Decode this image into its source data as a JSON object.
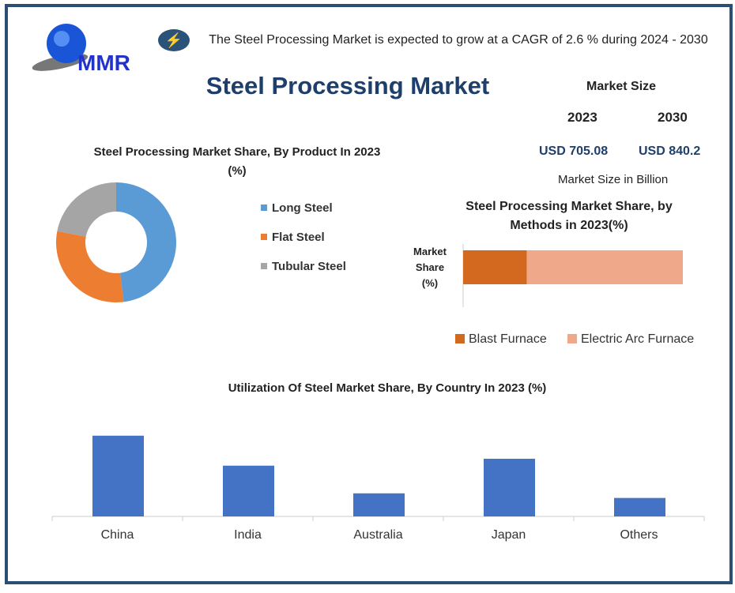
{
  "header": {
    "logo_text": "MMR",
    "cagr_text": "The Steel Processing Market is expected to grow at a CAGR of 2.6 % during 2024 - 2030",
    "title": "Steel Processing Market"
  },
  "market_size": {
    "label": "Market Size",
    "year1": "2023",
    "year2": "2030",
    "value1": "USD 705.08",
    "value2": "USD 840.2",
    "unit": "Market Size in Billion"
  },
  "colors": {
    "blue": "#5b9bd5",
    "orange": "#ed7d31",
    "gray": "#a5a5a5",
    "bf": "#d2691e",
    "eaf": "#f0a88a",
    "bar": "#4472c4",
    "navy": "#1e3f6b"
  },
  "chart_data": [
    {
      "type": "pie",
      "title": "Steel Processing Market Share, By Product In 2023  (%)",
      "categories": [
        "Long Steel",
        "Flat Steel",
        "Tubular Steel"
      ],
      "values": [
        48,
        30,
        22
      ],
      "colors": [
        "#5b9bd5",
        "#ed7d31",
        "#a5a5a5"
      ]
    },
    {
      "type": "bar",
      "orientation": "horizontal-stacked",
      "title": "Steel Processing Market Share, by Methods in 2023(%)",
      "ylabel": "Market Share (%)",
      "series": [
        {
          "name": "Blast Furnace",
          "values": [
            29
          ]
        },
        {
          "name": "Electric Arc Furnace",
          "values": [
            71
          ]
        }
      ],
      "colors": [
        "#d2691e",
        "#f0a88a"
      ]
    },
    {
      "type": "bar",
      "title": "Utilization Of Steel Market Share, By Country In 2023  (%)",
      "categories": [
        "China",
        "India",
        "Australia",
        "Japan",
        "Others"
      ],
      "values": [
        35,
        22,
        10,
        25,
        8
      ],
      "ylim": [
        0,
        38
      ]
    }
  ]
}
